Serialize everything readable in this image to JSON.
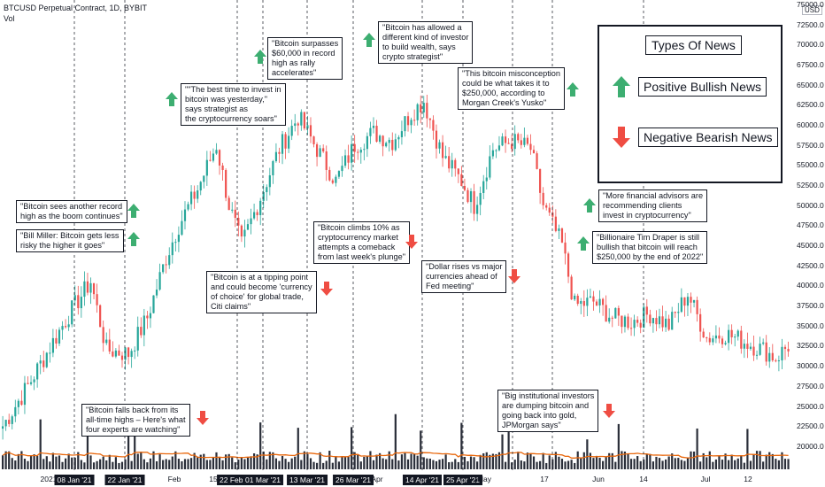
{
  "header": {
    "title": "BTCUSD Perpetual Contract, 1D, BYBIT",
    "sub": "Vol"
  },
  "yaxis": {
    "unit_badge": "USD",
    "min": 18000,
    "max": 75000,
    "step": 2500
  },
  "xaxis_labels": [
    {
      "text": "2021",
      "dark": false
    },
    {
      "text": "08 Jan '21",
      "dark": true
    },
    {
      "text": "22 Jan '21",
      "dark": true
    },
    {
      "text": "Feb",
      "dark": false
    },
    {
      "text": "15",
      "dark": false
    },
    {
      "text": "22 Feb '21",
      "dark": true
    },
    {
      "text": "01 Mar '21",
      "dark": true
    },
    {
      "text": "13 Mar '21",
      "dark": true
    },
    {
      "text": "26 Mar '21",
      "dark": true
    },
    {
      "text": "Apr",
      "dark": false
    },
    {
      "text": "14 Apr '21",
      "dark": true
    },
    {
      "text": "25 Apr '21",
      "dark": true
    },
    {
      "text": "May",
      "dark": false
    },
    {
      "text": "17",
      "dark": false
    },
    {
      "text": "Jun",
      "dark": false
    },
    {
      "text": "14",
      "dark": false
    },
    {
      "text": "Jul",
      "dark": false
    },
    {
      "text": "12",
      "dark": false
    }
  ],
  "legend": {
    "title": "Types Of News",
    "positive": "Positive Bullish News",
    "negative": "Negative Bearish News"
  },
  "news": [
    {
      "text": "\"Bitcoin sees another record\nhigh as the boom continues\"",
      "sentiment": "positive"
    },
    {
      "text": "\"Bill Miller: Bitcoin gets less\nrisky the higher it goes\"",
      "sentiment": "positive"
    },
    {
      "text": "\"Bitcoin falls back from its\nall-time highs – Here's what\nfour experts are watching\"",
      "sentiment": "negative"
    },
    {
      "text": "\"\"The best time to invest in\nbitcoin was yesterday,\"\nsays strategist as\nthe cryptocurrency soars\"",
      "sentiment": "positive"
    },
    {
      "text": "\"Bitcoin is at a tipping point\nand could become 'currency\nof choice' for global trade,\nCiti claims\"",
      "sentiment": "negative"
    },
    {
      "text": "\"Bitcoin surpasses\n$60,000 in record\nhigh as rally\naccelerates\"",
      "sentiment": "positive"
    },
    {
      "text": "\"Bitcoin climbs 10% as\ncryptocurrency market\nattempts a comeback\nfrom last week's plunge\"",
      "sentiment": "negative"
    },
    {
      "text": "\"Bitcoin has allowed a\ndifferent kind of investor\nto build wealth, says\ncrypto strategist\"",
      "sentiment": "positive"
    },
    {
      "text": "\"Dollar rises vs major\ncurrencies ahead of\nFed meeting\"",
      "sentiment": "negative"
    },
    {
      "text": "\"This bitcoin misconception\ncould be what takes it to\n$250,000, according to\nMorgan Creek's Yusko\"",
      "sentiment": "positive"
    },
    {
      "text": "\"Big institutional investors\nare dumping bitcoin and\ngoing back into gold,\nJPMorgan says\"",
      "sentiment": "negative"
    },
    {
      "text": "\"More financial advisors are\nrecommending clients\ninvest in cryptocurrency\"",
      "sentiment": "positive"
    },
    {
      "text": "\"Billionaire Tim Draper is still\nbullish that bitcoin will reach\n$250,000 by the end of 2022\"",
      "sentiment": "positive"
    }
  ],
  "colors": {
    "up": "#26a69a",
    "down": "#ef5350",
    "volume": "#2a2e39",
    "ma": "#e8670c",
    "arrow_up": "#3dae71",
    "arrow_down": "#ef4d43",
    "event_line": "#131722"
  },
  "chart_data": {
    "type": "candlestick",
    "title": "BTCUSD Perpetual Contract, 1D, BYBIT",
    "ylabel": "USD",
    "ylim": [
      18000,
      75000
    ],
    "grid": false,
    "legend_position": "top-right",
    "anchor_points": [
      {
        "t": 0,
        "close": 22500
      },
      {
        "t": 8,
        "close": 27500
      },
      {
        "t": 16,
        "close": 33000
      },
      {
        "t": 22,
        "close": 37000
      },
      {
        "t": 28,
        "close": 40500
      },
      {
        "t": 33,
        "close": 32000
      },
      {
        "t": 40,
        "close": 31500
      },
      {
        "t": 46,
        "close": 36000
      },
      {
        "t": 52,
        "close": 43500
      },
      {
        "t": 56,
        "close": 47500
      },
      {
        "t": 62,
        "close": 52000
      },
      {
        "t": 68,
        "close": 57500
      },
      {
        "t": 72,
        "close": 50000
      },
      {
        "t": 76,
        "close": 45000
      },
      {
        "t": 82,
        "close": 51000
      },
      {
        "t": 88,
        "close": 57000
      },
      {
        "t": 94,
        "close": 61000
      },
      {
        "t": 100,
        "close": 57000
      },
      {
        "t": 106,
        "close": 53000
      },
      {
        "t": 112,
        "close": 57500
      },
      {
        "t": 118,
        "close": 59000
      },
      {
        "t": 124,
        "close": 58000
      },
      {
        "t": 130,
        "close": 61500
      },
      {
        "t": 134,
        "close": 63000
      },
      {
        "t": 140,
        "close": 56000
      },
      {
        "t": 146,
        "close": 53000
      },
      {
        "t": 150,
        "close": 50000
      },
      {
        "t": 156,
        "close": 57000
      },
      {
        "t": 162,
        "close": 58000
      },
      {
        "t": 168,
        "close": 57000
      },
      {
        "t": 172,
        "close": 50000
      },
      {
        "t": 178,
        "close": 45000
      },
      {
        "t": 182,
        "close": 37500
      },
      {
        "t": 188,
        "close": 38000
      },
      {
        "t": 194,
        "close": 36000
      },
      {
        "t": 200,
        "close": 35500
      },
      {
        "t": 206,
        "close": 36500
      },
      {
        "t": 212,
        "close": 35000
      },
      {
        "t": 218,
        "close": 39000
      },
      {
        "t": 224,
        "close": 33500
      },
      {
        "t": 230,
        "close": 34000
      },
      {
        "t": 236,
        "close": 33000
      },
      {
        "t": 242,
        "close": 32000
      },
      {
        "t": 246,
        "close": 31000
      },
      {
        "t": 250,
        "close": 32500
      }
    ],
    "volume_panel": true,
    "moving_average_on_volume": true
  }
}
